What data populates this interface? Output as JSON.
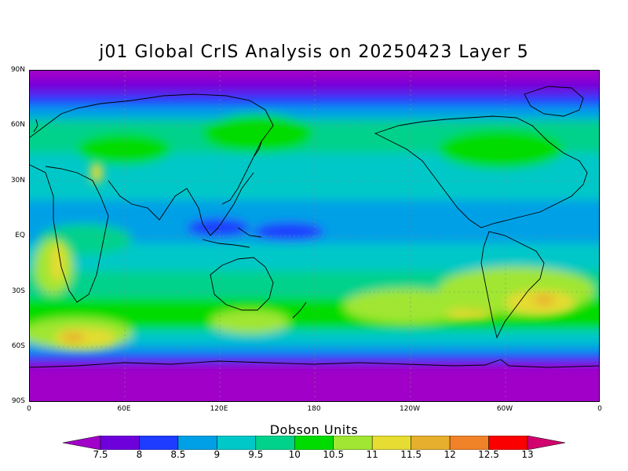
{
  "title": "j01 Global CrIS Analysis on 20250423 Layer 5",
  "map": {
    "projection": "cylindrical equidistant",
    "lon_range": [
      0,
      360
    ],
    "lat_range": [
      -90,
      90
    ],
    "grid": true,
    "y_labels": [
      "90N",
      "60N",
      "30N",
      "EQ",
      "30S",
      "60S",
      "90S"
    ],
    "x_labels": [
      "0",
      "60E",
      "120E",
      "180",
      "120W",
      "60W",
      "0"
    ]
  },
  "colorbar": {
    "title": "Dobson Units",
    "levels": [
      "7.5",
      "8",
      "8.5",
      "9",
      "9.5",
      "10",
      "10.5",
      "11",
      "11.5",
      "12",
      "12.5",
      "13"
    ],
    "colors": [
      "#a000c8",
      "#6e00dc",
      "#1e3cff",
      "#00a0e6",
      "#00c8c8",
      "#00d28c",
      "#00dc00",
      "#a0e632",
      "#e6dc32",
      "#e6af2d",
      "#f08228",
      "#fa0000",
      "#d2006e"
    ]
  }
}
